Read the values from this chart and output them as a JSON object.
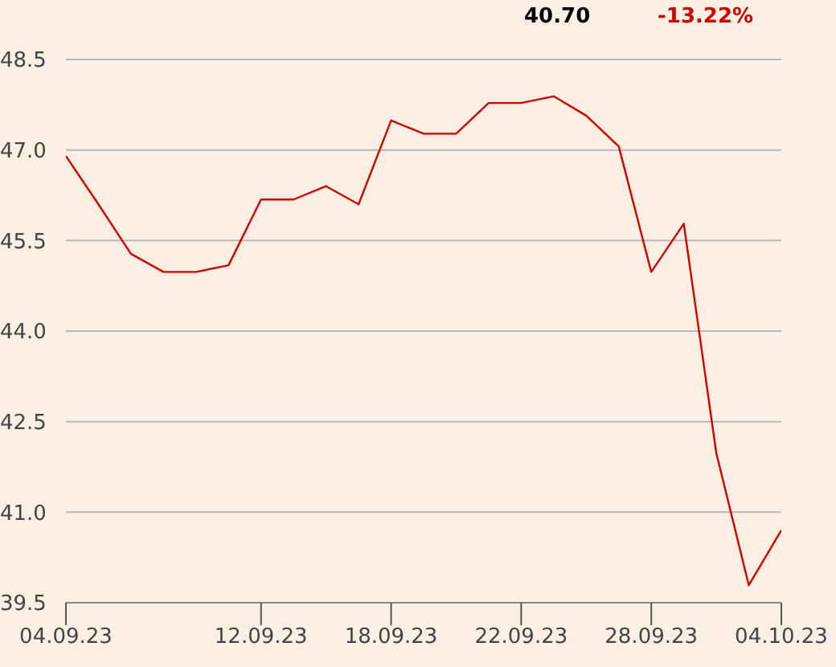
{
  "chart_data": {
    "type": "line",
    "annotations": [
      "40.70",
      "-13.22%"
    ],
    "categories": [
      "04.09.23",
      null,
      null,
      null,
      null,
      null,
      "12.09.23",
      null,
      null,
      null,
      "18.09.23",
      null,
      null,
      null,
      "22.09.23",
      null,
      null,
      null,
      "28.09.23",
      null,
      null,
      null,
      "04.10.23"
    ],
    "series": [
      {
        "color": "#cc0000",
        "values": [
          46.9,
          46.1,
          45.28,
          44.98,
          44.98,
          45.09,
          46.18,
          46.18,
          46.4,
          46.1,
          47.49,
          47.27,
          47.27,
          47.78,
          47.78,
          47.89,
          47.57,
          47.06,
          44.98,
          45.78,
          41.98,
          39.79,
          40.7
        ]
      }
    ],
    "ylim": [
      39.5,
      48.5
    ],
    "yticks": [
      39.5,
      {
        "value": 41.0,
        "label": "41.0"
      },
      42.5,
      {
        "value": 44.0,
        "label": "44.0"
      },
      45.5,
      {
        "value": 47.0,
        "label": "47.0"
      },
      48.5
    ],
    "tick_labels": "xy",
    "grid": "y",
    "legend": false,
    "marker": "none",
    "line_style": "solid"
  }
}
